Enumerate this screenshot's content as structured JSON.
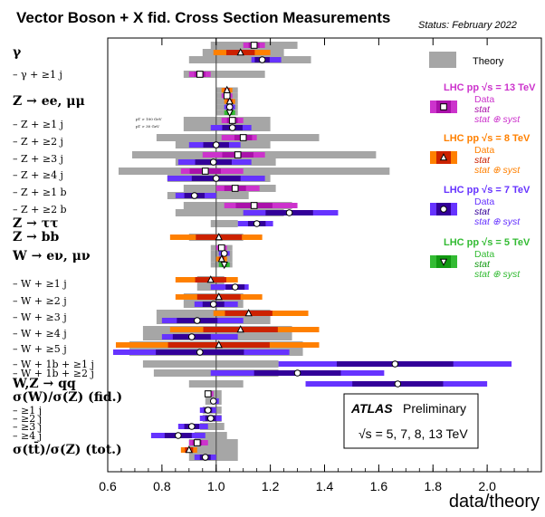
{
  "title": "Vector Boson + X fid. Cross Section Measurements",
  "status": "Status: February 2022",
  "chart_data": {
    "type": "scatter",
    "xlabel": "data/theory",
    "xlim": [
      0.6,
      2.2
    ],
    "xticks": [
      "0.6",
      "0.8",
      "1.0",
      "1.2",
      "1.4",
      "1.6",
      "1.8",
      "2.0"
    ],
    "xtick_values": [
      0.6,
      0.8,
      1.0,
      1.2,
      1.4,
      1.6,
      1.8,
      2.0
    ],
    "reference_line": 1.0,
    "legend": {
      "theory": "Theory",
      "groups": [
        {
          "header": "LHC pp √s = 13 TeV",
          "sqrts": "13",
          "color": "#cc33cc",
          "marker": "square",
          "data": "Data",
          "stat": "stat",
          "syst": "stat ⊕ syst"
        },
        {
          "header": "LHC pp √s = 8 TeV",
          "sqrts": "8",
          "color": "#ff8000",
          "marker": "triangle",
          "data": "Data",
          "stat": "stat",
          "syst": "stat ⊕ syst"
        },
        {
          "header": "LHC pp √s = 7 TeV",
          "sqrts": "7",
          "color": "#6633ff",
          "marker": "circle",
          "data": "Data",
          "stat": "stat",
          "syst": "stat ⊕ syst"
        },
        {
          "header": "LHC pp √s = 5 TeV",
          "sqrts": "5",
          "color": "#33bb33",
          "marker": "triangle-down",
          "data": "Data",
          "stat": "stat",
          "syst": "stat ⊕ syst"
        }
      ]
    },
    "annotation": {
      "experiment": "ATLAS",
      "label": "Preliminary",
      "energies": "√s = 5, 7, 8, 13 TeV"
    },
    "small_notes": [
      "pT > 100 GeV",
      "pT > 30 GeV"
    ],
    "rows": [
      {
        "label": "γ",
        "header": true,
        "measurements": [
          {
            "sqrts": "13",
            "value": 1.14,
            "syst": [
              1.1,
              1.18
            ],
            "theory": [
              0.98,
              1.3
            ]
          },
          {
            "sqrts": "8",
            "value": 1.09,
            "syst": [
              0.99,
              1.2
            ],
            "theory": [
              0.95,
              1.25
            ]
          },
          {
            "sqrts": "7",
            "value": 1.17,
            "syst": [
              1.13,
              1.24
            ],
            "theory": [
              0.9,
              1.35
            ]
          }
        ]
      },
      {
        "label": "– γ + ≥1 j",
        "measurements": [
          {
            "sqrts": "13",
            "value": 0.94,
            "syst": [
              0.9,
              0.98
            ],
            "theory": [
              0.88,
              1.18
            ]
          }
        ]
      },
      {
        "label": "Z → ee, μμ",
        "header": true,
        "measurements": [
          {
            "sqrts": "8",
            "value": 1.04,
            "syst": [
              1.02,
              1.06
            ],
            "theory": [
              1.0,
              1.08
            ]
          },
          {
            "sqrts": "13",
            "value": 1.04,
            "syst": [
              1.02,
              1.06
            ],
            "theory": [
              1.0,
              1.08
            ]
          },
          {
            "sqrts": "8",
            "value": 1.05,
            "syst": [
              1.03,
              1.07
            ],
            "theory": [
              1.0,
              1.08
            ]
          },
          {
            "sqrts": "7",
            "value": 1.05,
            "syst": [
              1.03,
              1.07
            ],
            "theory": [
              1.0,
              1.08
            ]
          },
          {
            "sqrts": "5",
            "value": 1.05,
            "syst": [
              1.03,
              1.07
            ],
            "theory": [
              1.0,
              1.08
            ]
          }
        ]
      },
      {
        "label": "– Z + ≥1 j",
        "measurements": [
          {
            "sqrts": "13",
            "value": 1.06,
            "syst": [
              1.02,
              1.1
            ],
            "theory": [
              0.88,
              1.2
            ]
          },
          {
            "sqrts": "7",
            "value": 1.06,
            "syst": [
              0.98,
              1.13
            ],
            "theory": [
              0.88,
              1.2
            ]
          }
        ]
      },
      {
        "label": "– Z + ≥2 j",
        "measurements": [
          {
            "sqrts": "13",
            "value": 1.1,
            "syst": [
              1.02,
              1.15
            ],
            "theory": [
              0.78,
              1.38
            ]
          },
          {
            "sqrts": "7",
            "value": 1.0,
            "syst": [
              0.9,
              1.09
            ],
            "theory": [
              0.85,
              1.2
            ]
          }
        ]
      },
      {
        "label": "– Z + ≥3 j",
        "measurements": [
          {
            "sqrts": "13",
            "value": 1.08,
            "syst": [
              0.95,
              1.18
            ],
            "theory": [
              0.69,
              1.59
            ]
          },
          {
            "sqrts": "7",
            "value": 0.99,
            "syst": [
              0.86,
              1.13
            ],
            "theory": [
              0.85,
              1.22
            ]
          }
        ]
      },
      {
        "label": "– Z + ≥4 j",
        "measurements": [
          {
            "sqrts": "13",
            "value": 0.96,
            "syst": [
              0.87,
              1.1
            ],
            "theory": [
              0.64,
              1.64
            ]
          },
          {
            "sqrts": "7",
            "value": 1.0,
            "syst": [
              0.82,
              1.18
            ],
            "theory": [
              0.82,
              1.2
            ]
          }
        ]
      },
      {
        "label": "– Z + ≥1 b",
        "measurements": [
          {
            "sqrts": "13",
            "value": 1.07,
            "syst": [
              1.0,
              1.16
            ],
            "theory": [
              0.88,
              1.22
            ]
          },
          {
            "sqrts": "7",
            "value": 0.92,
            "syst": [
              0.85,
              1.0
            ],
            "theory": [
              0.82,
              1.12
            ]
          }
        ]
      },
      {
        "label": "– Z + ≥2 b",
        "measurements": [
          {
            "sqrts": "13",
            "value": 1.14,
            "syst": [
              1.03,
              1.3
            ],
            "theory": [
              0.88,
              1.28
            ]
          },
          {
            "sqrts": "7",
            "value": 1.27,
            "syst": [
              1.1,
              1.45
            ],
            "theory": [
              0.85,
              1.25
            ]
          }
        ]
      },
      {
        "label": "Z → ττ",
        "header": true,
        "measurements": [
          {
            "sqrts": "7",
            "value": 1.15,
            "syst": [
              1.08,
              1.21
            ],
            "theory": [
              0.98,
              1.08
            ]
          }
        ]
      },
      {
        "label": "Z → bb",
        "header": true,
        "measurements": [
          {
            "sqrts": "8",
            "value": 1.01,
            "syst": [
              0.83,
              1.17
            ],
            "theory": [
              0.9,
              1.1
            ]
          }
        ]
      },
      {
        "label": "W → eν, μν",
        "header": true,
        "measurements": [
          {
            "sqrts": "13",
            "value": 1.02,
            "syst": [
              1.0,
              1.04
            ],
            "theory": [
              0.98,
              1.06
            ]
          },
          {
            "sqrts": "7",
            "value": 1.03,
            "syst": [
              1.01,
              1.05
            ],
            "theory": [
              0.98,
              1.06
            ]
          },
          {
            "sqrts": "8",
            "value": 1.02,
            "syst": [
              1.0,
              1.04
            ],
            "theory": [
              0.98,
              1.06
            ]
          },
          {
            "sqrts": "5",
            "value": 1.03,
            "syst": [
              1.01,
              1.05
            ],
            "theory": [
              0.98,
              1.06
            ]
          }
        ]
      },
      {
        "label": "– W + ≥1 j",
        "measurements": [
          {
            "sqrts": "8",
            "value": 0.98,
            "syst": [
              0.85,
              1.08
            ],
            "theory": [
              0.93,
              1.03
            ]
          },
          {
            "sqrts": "7",
            "value": 1.07,
            "syst": [
              0.98,
              1.12
            ],
            "theory": [
              0.93,
              1.03
            ]
          }
        ]
      },
      {
        "label": "– W + ≥2 j",
        "measurements": [
          {
            "sqrts": "8",
            "value": 1.01,
            "syst": [
              0.85,
              1.17
            ],
            "theory": [
              0.88,
              1.1
            ]
          },
          {
            "sqrts": "7",
            "value": 0.99,
            "syst": [
              0.92,
              1.08
            ],
            "theory": [
              0.88,
              1.1
            ]
          }
        ]
      },
      {
        "label": "– W + ≥3 j",
        "measurements": [
          {
            "sqrts": "8",
            "value": 1.12,
            "syst": [
              0.99,
              1.34
            ],
            "theory": [
              0.78,
              1.2
            ]
          },
          {
            "sqrts": "7",
            "value": 0.93,
            "syst": [
              0.8,
              1.1
            ],
            "theory": [
              0.78,
              1.2
            ]
          }
        ]
      },
      {
        "label": "– W + ≥4 j",
        "measurements": [
          {
            "sqrts": "8",
            "value": 1.09,
            "syst": [
              0.83,
              1.38
            ],
            "theory": [
              0.73,
              1.28
            ]
          },
          {
            "sqrts": "7",
            "value": 0.91,
            "syst": [
              0.8,
              1.08
            ],
            "theory": [
              0.73,
              1.28
            ]
          }
        ]
      },
      {
        "label": "– W + ≥5 j",
        "measurements": [
          {
            "sqrts": "8",
            "value": 1.01,
            "syst": [
              0.63,
              1.38
            ],
            "theory": [
              0.68,
              1.32
            ]
          },
          {
            "sqrts": "7",
            "value": 0.94,
            "syst": [
              0.62,
              1.27
            ],
            "theory": [
              0.68,
              1.32
            ]
          }
        ]
      },
      {
        "label": "– W + 1b + ≥1 j",
        "measurements": [
          {
            "sqrts": "7",
            "value": 1.66,
            "syst": [
              1.23,
              2.09
            ],
            "theory": [
              0.73,
              1.23
            ]
          }
        ]
      },
      {
        "label": "– W + 1b + ≥2 j",
        "measurements": [
          {
            "sqrts": "7",
            "value": 1.3,
            "syst": [
              0.98,
              1.62
            ],
            "theory": [
              0.77,
              1.23
            ]
          }
        ]
      },
      {
        "label": "W,Z → qq",
        "header": true,
        "measurements": [
          {
            "sqrts": "7",
            "value": 1.67,
            "syst": [
              1.33,
              2.0
            ],
            "theory": [
              0.9,
              1.1
            ]
          }
        ]
      },
      {
        "label": "σ(W)/σ(Z) (fid.)",
        "header": true,
        "measurements": [
          {
            "sqrts": "13",
            "value": 0.97,
            "syst": [
              0.96,
              0.99
            ],
            "theory": [
              0.96,
              1.02
            ]
          },
          {
            "sqrts": "7",
            "value": 0.99,
            "syst": [
              0.98,
              1.01
            ],
            "theory": [
              0.96,
              1.02
            ]
          }
        ]
      },
      {
        "label": "– ≥1 j",
        "measurements": [
          {
            "sqrts": "7",
            "value": 0.97,
            "syst": [
              0.94,
              1.0
            ],
            "theory": [
              0.95,
              1.02
            ]
          }
        ]
      },
      {
        "label": "– ≥2 j",
        "measurements": [
          {
            "sqrts": "7",
            "value": 0.98,
            "syst": [
              0.94,
              1.02
            ],
            "theory": [
              0.95,
              1.02
            ]
          }
        ]
      },
      {
        "label": "– ≥3 j",
        "measurements": [
          {
            "sqrts": "7",
            "value": 0.91,
            "syst": [
              0.86,
              0.97
            ],
            "theory": [
              0.94,
              1.03
            ]
          }
        ]
      },
      {
        "label": "– ≥4 j",
        "measurements": [
          {
            "sqrts": "7",
            "value": 0.86,
            "syst": [
              0.76,
              0.96
            ],
            "theory": [
              0.92,
              1.04
            ]
          }
        ]
      },
      {
        "label": "σ(tt̄)/σ(Z) (tot.)",
        "header": true,
        "measurements": [
          {
            "sqrts": "13",
            "value": 0.93,
            "syst": [
              0.9,
              0.97
            ],
            "theory": [
              0.9,
              1.08
            ]
          },
          {
            "sqrts": "8",
            "value": 0.9,
            "syst": [
              0.87,
              0.93
            ],
            "theory": [
              0.9,
              1.08
            ]
          },
          {
            "sqrts": "7",
            "value": 0.96,
            "syst": [
              0.92,
              1.0
            ],
            "theory": [
              0.9,
              1.08
            ]
          }
        ]
      }
    ]
  }
}
